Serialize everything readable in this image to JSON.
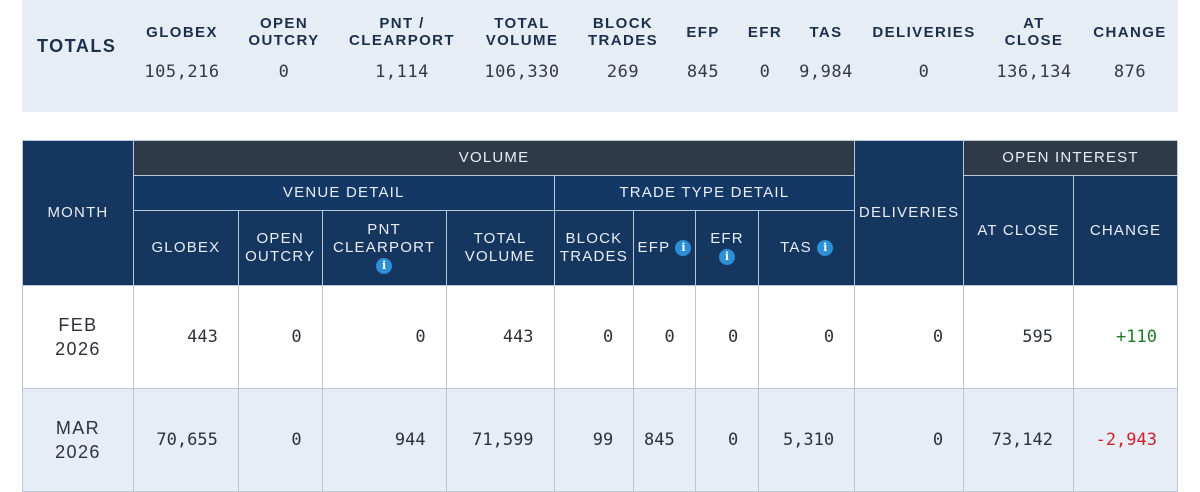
{
  "totals": {
    "label": "TOTALS",
    "columns": [
      {
        "header": "GLOBEX",
        "value": "105,216"
      },
      {
        "header": "OPEN\nOUTCRY",
        "value": "0"
      },
      {
        "header": "PNT /\nCLEARPORT",
        "value": "1,114"
      },
      {
        "header": "TOTAL\nVOLUME",
        "value": "106,330"
      },
      {
        "header": "BLOCK\nTRADES",
        "value": "269"
      },
      {
        "header": "EFP",
        "value": "845"
      },
      {
        "header": "EFR",
        "value": "0"
      },
      {
        "header": "TAS",
        "value": "9,984"
      },
      {
        "header": "DELIVERIES",
        "value": "0"
      },
      {
        "header": "AT\nCLOSE",
        "value": "136,134"
      },
      {
        "header": "CHANGE",
        "value": "876"
      }
    ]
  },
  "table": {
    "month_header": "MONTH",
    "volume_header": "VOLUME",
    "venue_detail_header": "VENUE DETAIL",
    "trade_type_header": "TRADE TYPE DETAIL",
    "deliveries_header": "DELIVERIES",
    "open_interest_header": "OPEN INTEREST",
    "columns": {
      "globex": "GLOBEX",
      "open_outcry": "OPEN\nOUTCRY",
      "pnt_clearport": "PNT\nCLEARPORT",
      "total_volume": "TOTAL\nVOLUME",
      "block_trades": "BLOCK\nTRADES",
      "efp": "EFP",
      "efr": "EFR",
      "tas": "TAS",
      "at_close": "AT CLOSE",
      "change": "CHANGE"
    },
    "info_glyph": "i",
    "rows": [
      {
        "month": "FEB\n2026",
        "globex": "443",
        "open_outcry": "0",
        "pnt_clearport": "0",
        "total_volume": "443",
        "block_trades": "0",
        "efp": "0",
        "efr": "0",
        "tas": "0",
        "deliveries": "0",
        "at_close": "595",
        "change": "+110"
      },
      {
        "month": "MAR\n2026",
        "globex": "70,655",
        "open_outcry": "0",
        "pnt_clearport": "944",
        "total_volume": "71,599",
        "block_trades": "99",
        "efp": "845",
        "efr": "0",
        "tas": "5,310",
        "deliveries": "0",
        "at_close": "73,142",
        "change": "-2,943"
      }
    ]
  },
  "colors": {
    "header_navy": "#15365f",
    "header_slate": "#2e3a47",
    "info_blue": "#2d8fd5",
    "positive": "#1d7c2b",
    "negative": "#d1202a",
    "totals_bg": "#e7edf4"
  }
}
